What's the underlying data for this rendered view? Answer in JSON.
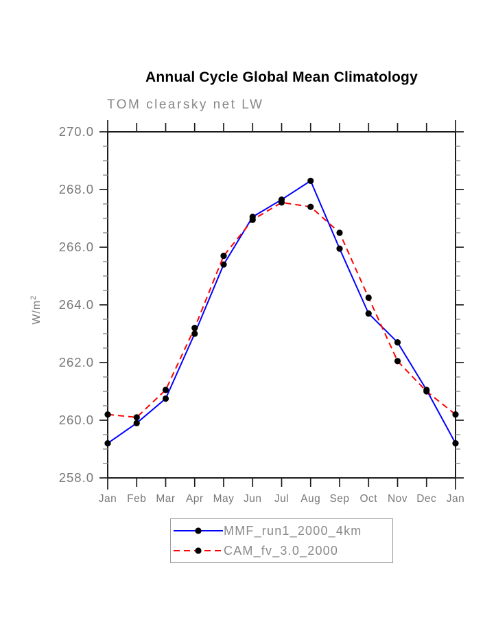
{
  "chart_data": {
    "type": "line",
    "title": "Annual Cycle Global Mean Climatology",
    "subtitle": "TOM clearsky net LW",
    "ylabel_base": "W/m",
    "ylabel_sup": "2",
    "categories": [
      "Jan",
      "Feb",
      "Mar",
      "Apr",
      "May",
      "Jun",
      "Jul",
      "Aug",
      "Sep",
      "Oct",
      "Nov",
      "Dec",
      "Jan"
    ],
    "series": [
      {
        "name": "MMF_run1_2000_4km",
        "color": "#0000ff",
        "style": "solid",
        "values": [
          259.2,
          259.9,
          260.75,
          263.0,
          265.4,
          267.05,
          267.65,
          268.3,
          265.95,
          263.7,
          262.7,
          261.05,
          259.2
        ]
      },
      {
        "name": "CAM_fv_3.0_2000",
        "color": "#ff0000",
        "style": "dashed",
        "values": [
          260.2,
          260.1,
          261.05,
          263.2,
          265.7,
          266.95,
          267.55,
          267.4,
          266.5,
          264.25,
          262.05,
          261.0,
          260.2
        ]
      }
    ],
    "marker_color": "#000000",
    "ylim": [
      258.0,
      270.0
    ],
    "ytick_step": 2.0,
    "ytick_minor_step": 0.5,
    "ytick_labels": [
      "258.0",
      "260.0",
      "262.0",
      "264.0",
      "266.0",
      "268.0",
      "270.0"
    ],
    "grid": false,
    "legend_position": "bottom-center",
    "axis_color": "#1c1c1c",
    "minor_tick_color": "#8c8c8c",
    "label_color": "#787878"
  }
}
